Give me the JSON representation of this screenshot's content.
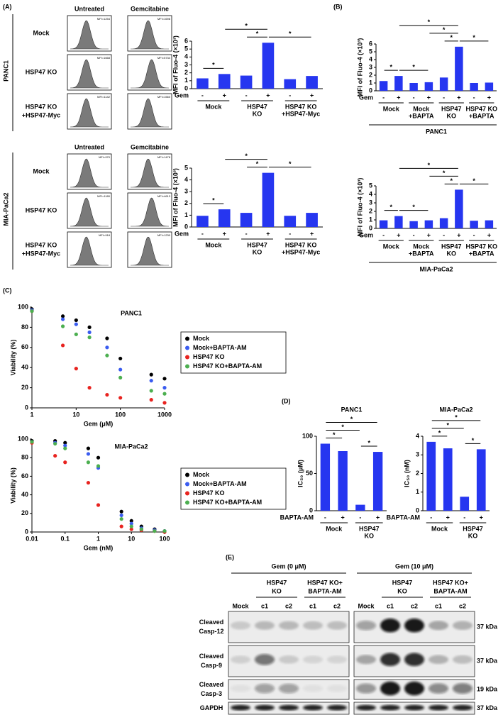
{
  "panels": {
    "A": "(A)",
    "B": "(B)",
    "C": "(C)",
    "D": "(D)"
  },
  "flow": [
    {
      "cell_line": "PANC1",
      "columns": [
        "Untreated",
        "Gemcitabine"
      ],
      "rows": [
        {
          "label": [
            "Mock"
          ],
          "mfi": [
            "MFI=1254",
            "MFI=1698"
          ]
        },
        {
          "label": [
            "HSP47 KO"
          ],
          "mfi": [
            "MFI=1668",
            "MFI=5734"
          ]
        },
        {
          "label": [
            "HSP47 KO",
            "+HSP47-Myc"
          ],
          "mfi": [
            "MFI=1142",
            "MFI=1560"
          ]
        }
      ]
    },
    {
      "cell_line": "MIA-PaCa2",
      "columns": [
        "Untreated",
        "Gemcitabine"
      ],
      "rows": [
        {
          "label": [
            "Mock"
          ],
          "mfi": [
            "MFI=970",
            "MFI=1478"
          ]
        },
        {
          "label": [
            "HSP47 KO"
          ],
          "mfi": [
            "MFI=1180",
            "MFI=4613"
          ]
        },
        {
          "label": [
            "HSP47 KO",
            "+HSP47-Myc"
          ],
          "mfi": [
            "MFI=918",
            "MFI=1230"
          ]
        }
      ]
    }
  ],
  "chart_data": [
    {
      "type": "bar",
      "ylabel": "MFI of Fluo-4 (×10³)",
      "category_label": "Gem",
      "categories": [
        "-",
        "+",
        "-",
        "+",
        "-",
        "+"
      ],
      "groups": [
        [
          "Mock"
        ],
        [
          "HSP47",
          "KO"
        ],
        [
          "HSP47 KO",
          "+HSP47-Myc"
        ]
      ],
      "values": [
        1.3,
        1.85,
        1.65,
        5.8,
        1.2,
        1.6
      ],
      "color": "#2636f0",
      "ylim": [
        0,
        6
      ],
      "yticks": [
        0,
        1,
        2,
        3,
        4,
        5,
        6
      ],
      "brackets": [
        "*",
        "*",
        "*",
        "*"
      ]
    },
    {
      "type": "bar",
      "ylabel": "MFI of Fluo-4 (×10³)",
      "category_label": "Gem",
      "categories": [
        "-",
        "+",
        "-",
        "+",
        "-",
        "+"
      ],
      "groups": [
        [
          "Mock"
        ],
        [
          "HSP47",
          "KO"
        ],
        [
          "HSP47 KO",
          "+HSP47-Myc"
        ]
      ],
      "values": [
        0.95,
        1.5,
        1.2,
        4.6,
        0.95,
        1.2
      ],
      "color": "#2636f0",
      "ylim": [
        0,
        5
      ],
      "yticks": [
        0,
        1,
        2,
        3,
        4,
        5
      ],
      "brackets": [
        "*",
        "*",
        "*",
        "*"
      ]
    },
    {
      "type": "bar",
      "title": "PANC1",
      "ylabel": "MFI of Fluo-4 (×10³)",
      "category_label": "Gem",
      "categories": [
        "-",
        "+",
        "-",
        "+",
        "-",
        "+",
        "-",
        "+"
      ],
      "groups": [
        [
          "Mock"
        ],
        [
          "Mock",
          "+BAPTA"
        ],
        [
          "HSP47",
          "KO"
        ],
        [
          "HSP47 KO",
          "+BAPTA"
        ]
      ],
      "values": [
        1.25,
        1.9,
        1.0,
        1.1,
        1.7,
        5.65,
        1.0,
        1.05
      ],
      "color": "#2636f0",
      "ylim": [
        0,
        6
      ],
      "yticks": [
        0,
        1,
        2,
        3,
        4,
        5,
        6
      ],
      "brackets": [
        "*",
        "*",
        "*",
        "*",
        "*",
        "*"
      ]
    },
    {
      "type": "bar",
      "title": "MIA-PaCa2",
      "ylabel": "MFI of Fluo-4 (×10³)",
      "category_label": "Gem",
      "categories": [
        "-",
        "+",
        "-",
        "+",
        "-",
        "+",
        "-",
        "+"
      ],
      "groups": [
        [
          "Mock"
        ],
        [
          "Mock",
          "+BAPTA"
        ],
        [
          "HSP47",
          "KO"
        ],
        [
          "HSP47 KO",
          "+BAPTA"
        ]
      ],
      "values": [
        0.95,
        1.45,
        0.85,
        0.95,
        1.2,
        4.55,
        0.9,
        0.95
      ],
      "color": "#2636f0",
      "ylim": [
        0,
        5
      ],
      "yticks": [
        0,
        1,
        2,
        3,
        4,
        5
      ],
      "brackets": [
        "*",
        "*",
        "*",
        "*",
        "*",
        "*"
      ]
    },
    {
      "type": "scatter",
      "title": "PANC1",
      "xlabel": "Gem (μM)",
      "ylabel": "Viability (%)",
      "xscale": "log",
      "legend": "right",
      "x": [
        1,
        5,
        10,
        20,
        50,
        100,
        500,
        1000
      ],
      "series": [
        {
          "name": "Mock",
          "color": "#000000",
          "values": [
            98,
            91,
            87,
            80,
            69,
            49,
            33,
            29
          ]
        },
        {
          "name": "Mock+BAPTA-AM",
          "color": "#3a5cf0",
          "values": [
            97,
            88,
            83,
            75,
            60,
            38,
            27,
            20
          ]
        },
        {
          "name": "HSP47 KO",
          "color": "#e8231f",
          "values": [
            96,
            62,
            39,
            20,
            13,
            10,
            8,
            5
          ]
        },
        {
          "name": "HSP47 KO+BAPTA-AM",
          "color": "#4caf50",
          "values": [
            96,
            81,
            73,
            70,
            52,
            30,
            17,
            14
          ]
        }
      ],
      "xlim": [
        1,
        1000
      ],
      "xticks": [
        1,
        10,
        100,
        1000
      ],
      "ylim": [
        0,
        100
      ],
      "yticks": [
        0,
        20,
        40,
        60,
        80,
        100
      ]
    },
    {
      "type": "scatter",
      "title": "MIA-PaCa2",
      "xlabel": "Gem (nM)",
      "ylabel": "Viability (%)",
      "xscale": "log",
      "legend": "right",
      "x": [
        0.01,
        0.05,
        0.1,
        0.5,
        1,
        5,
        10,
        20,
        50,
        100
      ],
      "series": [
        {
          "name": "Mock",
          "color": "#000000",
          "values": [
            98,
            98,
            96,
            90,
            80,
            22,
            12,
            6,
            3,
            1
          ]
        },
        {
          "name": "Mock+BAPTA-AM",
          "color": "#3a5cf0",
          "values": [
            97,
            96,
            93,
            84,
            69,
            18,
            9,
            4,
            2,
            1
          ]
        },
        {
          "name": "HSP47 KO",
          "color": "#e8231f",
          "values": [
            96,
            82,
            75,
            53,
            29,
            6,
            3,
            2,
            1,
            0
          ]
        },
        {
          "name": "HSP47 KO+BAPTA-AM",
          "color": "#4caf50",
          "values": [
            97,
            95,
            90,
            75,
            71,
            14,
            6,
            3,
            1,
            1
          ]
        }
      ],
      "xlim": [
        0.01,
        100
      ],
      "xticks": [
        0.01,
        0.1,
        1,
        10,
        100
      ],
      "ylim": [
        0,
        100
      ],
      "yticks": [
        0,
        20,
        40,
        60,
        80,
        100
      ]
    },
    {
      "type": "bar",
      "title": "PANC1",
      "ylabel": "IC₅₀ (μM)",
      "category_label": "BAPTA-AM",
      "categories": [
        "-",
        "+",
        "-",
        "+"
      ],
      "groups": [
        [
          "Mock"
        ],
        [
          "HSP47",
          "KO"
        ]
      ],
      "values": [
        90,
        80,
        8,
        79
      ],
      "color": "#2636f0",
      "ylim": [
        0,
        100
      ],
      "yticks": [
        0,
        50,
        100
      ],
      "brackets": [
        "*",
        "*",
        "*",
        "*"
      ]
    },
    {
      "type": "bar",
      "title": "MIA-PaCa2",
      "ylabel": "IC₅₀ (nM)",
      "category_label": "BAPTA-AM",
      "categories": [
        "-",
        "+",
        "-",
        "+"
      ],
      "groups": [
        [
          "Mock"
        ],
        [
          "HSP47",
          "KO"
        ]
      ],
      "values": [
        3.7,
        3.35,
        0.75,
        3.3
      ],
      "color": "#2636f0",
      "ylim": [
        0,
        4
      ],
      "yticks": [
        0,
        1,
        2,
        3,
        4
      ],
      "brackets": [
        "*",
        "*",
        "*",
        "*"
      ]
    }
  ],
  "blot": {
    "panel": "(E)",
    "conditions": [
      "Gem (0 μM)",
      "Gem (10 μM)"
    ],
    "groups": [
      [
        "HSP47",
        "KO"
      ],
      [
        "HSP47 KO+",
        "BAPTA-AM"
      ]
    ],
    "lanes": [
      "Mock",
      "c1",
      "c2",
      "c1",
      "c2"
    ],
    "rows": [
      {
        "label": [
          "Cleaved",
          "Casp-12"
        ],
        "size": "37 kDa"
      },
      {
        "label": [
          "Cleaved",
          "Casp-9"
        ],
        "size": "37 kDa"
      },
      {
        "label": [
          "Cleaved",
          "Casp-3"
        ],
        "size": "19 kDa"
      },
      {
        "label": [
          "GAPDH"
        ],
        "size": "37 kDa"
      }
    ]
  }
}
